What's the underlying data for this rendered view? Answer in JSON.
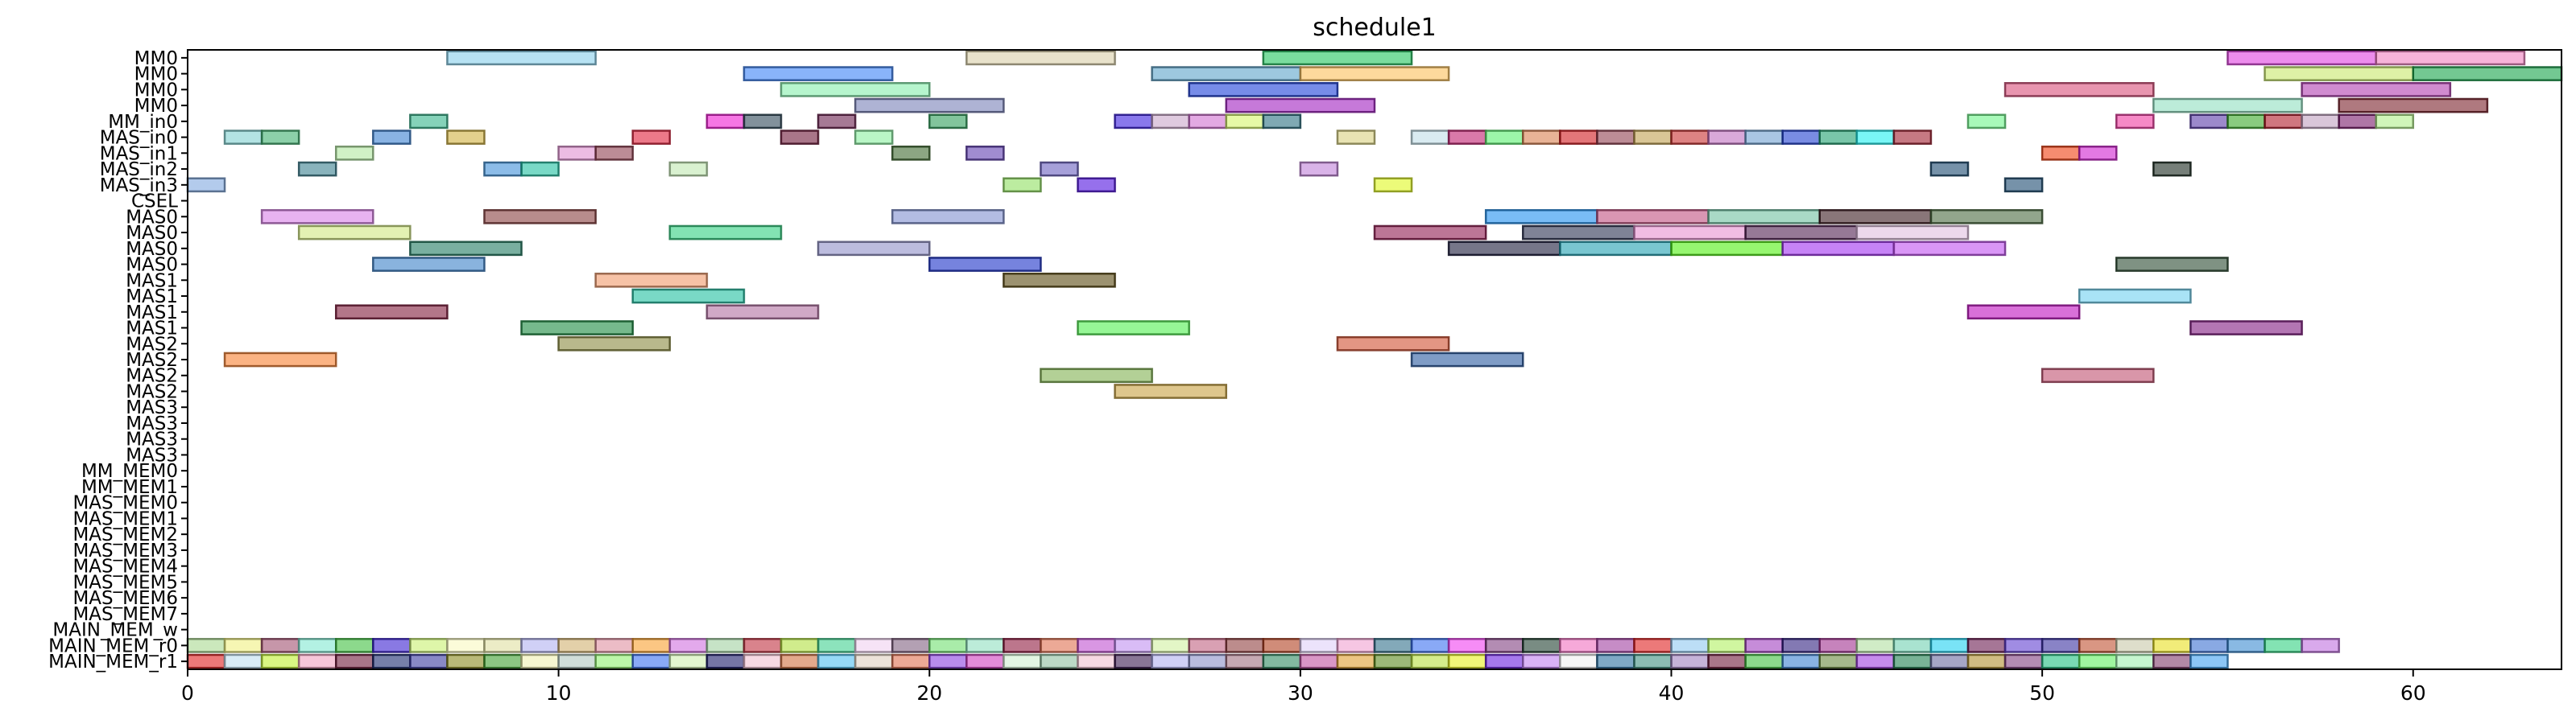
{
  "chart_data": {
    "type": "gantt",
    "title": "schedule1",
    "xlabel": "",
    "ylabel": "",
    "xlim": [
      0,
      64
    ],
    "x_ticks": [
      0,
      10,
      20,
      30,
      40,
      50,
      60
    ],
    "grid": false,
    "rows": [
      "MM0",
      "MM0",
      "MM0",
      "MM0",
      "MM_in0",
      "MAS_in0",
      "MAS_in1",
      "MAS_in2",
      "MAS_in3",
      "CSEL",
      "MAS0",
      "MAS0",
      "MAS0",
      "MAS0",
      "MAS1",
      "MAS1",
      "MAS1",
      "MAS1",
      "MAS2",
      "MAS2",
      "MAS2",
      "MAS2",
      "MAS3",
      "MAS3",
      "MAS3",
      "MAS3",
      "MM_MEM0",
      "MM_MEM1",
      "MAS_MEM0",
      "MAS_MEM1",
      "MAS_MEM2",
      "MAS_MEM3",
      "MAS_MEM4",
      "MAS_MEM5",
      "MAS_MEM6",
      "MAS_MEM7",
      "MAIN_MEM_w",
      "MAIN_MEM_r0",
      "MAIN_MEM_r1"
    ],
    "tasks": [
      {
        "row": 0,
        "start": 7,
        "end": 11,
        "color": "#87ceeb"
      },
      {
        "row": 0,
        "start": 21,
        "end": 25,
        "color": "#d8cfa8"
      },
      {
        "row": 0,
        "start": 29,
        "end": 33,
        "color": "#22c55e"
      },
      {
        "row": 0,
        "start": 55,
        "end": 59,
        "color": "#e040e0"
      },
      {
        "row": 0,
        "start": 59,
        "end": 63,
        "color": "#f080c0"
      },
      {
        "row": 1,
        "start": 15,
        "end": 19,
        "color": "#3b82f6"
      },
      {
        "row": 1,
        "start": 26,
        "end": 30,
        "color": "#5ba3c9"
      },
      {
        "row": 1,
        "start": 30,
        "end": 34,
        "color": "#fbbf5a"
      },
      {
        "row": 1,
        "start": 56,
        "end": 60,
        "color": "#c8e86a"
      },
      {
        "row": 1,
        "start": 60,
        "end": 64,
        "color": "#16a34a"
      },
      {
        "row": 2,
        "start": 16,
        "end": 20,
        "color": "#86efac"
      },
      {
        "row": 2,
        "start": 27,
        "end": 31,
        "color": "#1d3fd8"
      },
      {
        "row": 2,
        "start": 49,
        "end": 53,
        "color": "#d94f7a"
      },
      {
        "row": 2,
        "start": 57,
        "end": 61,
        "color": "#b03db0"
      },
      {
        "row": 3,
        "start": 18,
        "end": 22,
        "color": "#7880b8"
      },
      {
        "row": 3,
        "start": 28,
        "end": 32,
        "color": "#a020c0"
      },
      {
        "row": 3,
        "start": 53,
        "end": 57,
        "color": "#8fe0c0"
      },
      {
        "row": 3,
        "start": 58,
        "end": 62,
        "color": "#7a1f2a"
      },
      {
        "row": 4,
        "start": 6,
        "end": 7,
        "color": "#34b48a"
      },
      {
        "row": 4,
        "start": 14,
        "end": 15,
        "color": "#f01ad2"
      },
      {
        "row": 4,
        "start": 15,
        "end": 16,
        "color": "#2f4858"
      },
      {
        "row": 4,
        "start": 17,
        "end": 18,
        "color": "#6b1f4f"
      },
      {
        "row": 4,
        "start": 20,
        "end": 21,
        "color": "#2e9e5a"
      },
      {
        "row": 4,
        "start": 25,
        "end": 26,
        "color": "#3a1ee0"
      },
      {
        "row": 4,
        "start": 26,
        "end": 27,
        "color": "#c9a7c9"
      },
      {
        "row": 4,
        "start": 27,
        "end": 28,
        "color": "#d070d0"
      },
      {
        "row": 4,
        "start": 28,
        "end": 29,
        "color": "#d6f56a"
      },
      {
        "row": 4,
        "start": 29,
        "end": 30,
        "color": "#2a6f80"
      },
      {
        "row": 4,
        "start": 48,
        "end": 49,
        "color": "#6ef58a"
      },
      {
        "row": 4,
        "start": 52,
        "end": 53,
        "color": "#f03aa0"
      },
      {
        "row": 4,
        "start": 54,
        "end": 55,
        "color": "#5a3aa8"
      },
      {
        "row": 4,
        "start": 55,
        "end": 56,
        "color": "#3aa82a"
      },
      {
        "row": 4,
        "start": 56,
        "end": 57,
        "color": "#b01a2a"
      },
      {
        "row": 4,
        "start": 57,
        "end": 58,
        "color": "#c0a0c0"
      },
      {
        "row": 4,
        "start": 58,
        "end": 59,
        "color": "#7a1a6a"
      },
      {
        "row": 4,
        "start": 59,
        "end": 60,
        "color": "#b0ee8a"
      },
      {
        "row": 5,
        "start": 1,
        "end": 2,
        "color": "#80d0d0"
      },
      {
        "row": 5,
        "start": 2,
        "end": 3,
        "color": "#40b070"
      },
      {
        "row": 5,
        "start": 5,
        "end": 6,
        "color": "#3a80d0"
      },
      {
        "row": 5,
        "start": 7,
        "end": 8,
        "color": "#d0b040"
      },
      {
        "row": 5,
        "start": 12,
        "end": 13,
        "color": "#e0203a"
      },
      {
        "row": 5,
        "start": 16,
        "end": 17,
        "color": "#701a3a"
      },
      {
        "row": 5,
        "start": 18,
        "end": 19,
        "color": "#8af0a0"
      },
      {
        "row": 5,
        "start": 31,
        "end": 32,
        "color": "#d8d080"
      },
      {
        "row": 5,
        "start": 33,
        "end": 34,
        "color": "#c0dde8"
      },
      {
        "row": 5,
        "start": 34,
        "end": 35,
        "color": "#c02070"
      },
      {
        "row": 5,
        "start": 35,
        "end": 36,
        "color": "#5af070"
      },
      {
        "row": 5,
        "start": 36,
        "end": 37,
        "color": "#d88050"
      },
      {
        "row": 5,
        "start": 37,
        "end": 38,
        "color": "#d01a20"
      },
      {
        "row": 5,
        "start": 38,
        "end": 39,
        "color": "#904050"
      },
      {
        "row": 5,
        "start": 39,
        "end": 40,
        "color": "#c0a050"
      },
      {
        "row": 5,
        "start": 40,
        "end": 41,
        "color": "#c83030"
      },
      {
        "row": 5,
        "start": 41,
        "end": 42,
        "color": "#c070c0"
      },
      {
        "row": 5,
        "start": 42,
        "end": 43,
        "color": "#70a0d0"
      },
      {
        "row": 5,
        "start": 43,
        "end": 44,
        "color": "#2040d0"
      },
      {
        "row": 5,
        "start": 44,
        "end": 45,
        "color": "#20a070"
      },
      {
        "row": 5,
        "start": 45,
        "end": 46,
        "color": "#20f0f0"
      },
      {
        "row": 5,
        "start": 46,
        "end": 47,
        "color": "#a02030"
      },
      {
        "row": 6,
        "start": 4,
        "end": 5,
        "color": "#b0e8a0"
      },
      {
        "row": 6,
        "start": 10,
        "end": 11,
        "color": "#e090d0"
      },
      {
        "row": 6,
        "start": 11,
        "end": 12,
        "color": "#904050"
      },
      {
        "row": 6,
        "start": 19,
        "end": 20,
        "color": "#406a30"
      },
      {
        "row": 6,
        "start": 21,
        "end": 22,
        "color": "#6040b0"
      },
      {
        "row": 6,
        "start": 50,
        "end": 51,
        "color": "#f04010"
      },
      {
        "row": 6,
        "start": 51,
        "end": 52,
        "color": "#d020d0"
      },
      {
        "row": 7,
        "start": 3,
        "end": 4,
        "color": "#3a8090"
      },
      {
        "row": 7,
        "start": 8,
        "end": 9,
        "color": "#4090d8"
      },
      {
        "row": 7,
        "start": 9,
        "end": 10,
        "color": "#20c0a0"
      },
      {
        "row": 7,
        "start": 13,
        "end": 14,
        "color": "#c0e8b0"
      },
      {
        "row": 7,
        "start": 23,
        "end": 24,
        "color": "#6a60c0"
      },
      {
        "row": 7,
        "start": 30,
        "end": 31,
        "color": "#c080d8"
      },
      {
        "row": 7,
        "start": 47,
        "end": 48,
        "color": "#1a4a70"
      },
      {
        "row": 7,
        "start": 53,
        "end": 54,
        "color": "#1a2a20"
      },
      {
        "row": 8,
        "start": 0,
        "end": 1,
        "color": "#80a8e0"
      },
      {
        "row": 8,
        "start": 22,
        "end": 23,
        "color": "#90e060"
      },
      {
        "row": 8,
        "start": 24,
        "end": 25,
        "color": "#5010e0"
      },
      {
        "row": 8,
        "start": 32,
        "end": 33,
        "color": "#e0f820"
      },
      {
        "row": 8,
        "start": 49,
        "end": 50,
        "color": "#1a4a70"
      },
      {
        "row": 10,
        "start": 2,
        "end": 5,
        "color": "#d880e8"
      },
      {
        "row": 10,
        "start": 8,
        "end": 11,
        "color": "#884040"
      },
      {
        "row": 10,
        "start": 19,
        "end": 22,
        "color": "#8090d0"
      },
      {
        "row": 10,
        "start": 35,
        "end": 38,
        "color": "#2090f0"
      },
      {
        "row": 10,
        "start": 38,
        "end": 41,
        "color": "#c05080"
      },
      {
        "row": 10,
        "start": 41,
        "end": 44,
        "color": "#70c0a0"
      },
      {
        "row": 10,
        "start": 44,
        "end": 47,
        "color": "#3a1a20"
      },
      {
        "row": 10,
        "start": 47,
        "end": 50,
        "color": "#4a6a40"
      },
      {
        "row": 11,
        "start": 3,
        "end": 6,
        "color": "#d0e880"
      },
      {
        "row": 11,
        "start": 13,
        "end": 16,
        "color": "#30d080"
      },
      {
        "row": 11,
        "start": 32,
        "end": 35,
        "color": "#901a50"
      },
      {
        "row": 11,
        "start": 36,
        "end": 39,
        "color": "#2a3050"
      },
      {
        "row": 11,
        "start": 39,
        "end": 42,
        "color": "#e890d0"
      },
      {
        "row": 11,
        "start": 42,
        "end": 45,
        "color": "#502050"
      },
      {
        "row": 11,
        "start": 45,
        "end": 48,
        "color": "#e0c0e0"
      },
      {
        "row": 12,
        "start": 6,
        "end": 9,
        "color": "#207a60"
      },
      {
        "row": 12,
        "start": 17,
        "end": 20,
        "color": "#9090c8"
      },
      {
        "row": 12,
        "start": 34,
        "end": 37,
        "color": "#1a1a3a"
      },
      {
        "row": 12,
        "start": 37,
        "end": 40,
        "color": "#20a0b0"
      },
      {
        "row": 12,
        "start": 40,
        "end": 43,
        "color": "#50f010"
      },
      {
        "row": 12,
        "start": 43,
        "end": 46,
        "color": "#a030f0"
      },
      {
        "row": 12,
        "start": 46,
        "end": 49,
        "color": "#c050f0"
      },
      {
        "row": 13,
        "start": 5,
        "end": 8,
        "color": "#3a80c8"
      },
      {
        "row": 13,
        "start": 20,
        "end": 23,
        "color": "#1a30c8"
      },
      {
        "row": 13,
        "start": 52,
        "end": 55,
        "color": "#2a4a30"
      },
      {
        "row": 14,
        "start": 11,
        "end": 14,
        "color": "#f09a6a"
      },
      {
        "row": 14,
        "start": 22,
        "end": 25,
        "color": "#5a4a10"
      },
      {
        "row": 15,
        "start": 12,
        "end": 15,
        "color": "#20c0a0"
      },
      {
        "row": 15,
        "start": 51,
        "end": 54,
        "color": "#70d0f0"
      },
      {
        "row": 16,
        "start": 4,
        "end": 7,
        "color": "#801a3a"
      },
      {
        "row": 16,
        "start": 14,
        "end": 17,
        "color": "#b070a0"
      },
      {
        "row": 16,
        "start": 48,
        "end": 51,
        "color": "#c010c0"
      },
      {
        "row": 17,
        "start": 9,
        "end": 12,
        "color": "#1a8a40"
      },
      {
        "row": 17,
        "start": 24,
        "end": 27,
        "color": "#50f050"
      },
      {
        "row": 17,
        "start": 54,
        "end": 57,
        "color": "#801a80"
      },
      {
        "row": 18,
        "start": 10,
        "end": 13,
        "color": "#8a8a40"
      },
      {
        "row": 18,
        "start": 31,
        "end": 34,
        "color": "#d05030"
      },
      {
        "row": 19,
        "start": 1,
        "end": 4,
        "color": "#f88030"
      },
      {
        "row": 19,
        "start": 33,
        "end": 36,
        "color": "#2a5aa0"
      },
      {
        "row": 20,
        "start": 23,
        "end": 26,
        "color": "#80b050"
      },
      {
        "row": 20,
        "start": 50,
        "end": 53,
        "color": "#c05070"
      },
      {
        "row": 21,
        "start": 25,
        "end": 28,
        "color": "#c8a040"
      }
    ],
    "memory_rows": {
      "r0": {
        "row": 37,
        "colors": [
          "#a8d890",
          "#f0f080",
          "#a05070",
          "#80e8d0",
          "#40c040",
          "#3a20d0",
          "#c8f070",
          "#f8f8c0",
          "#e0e0a0",
          "#b0b0f0",
          "#d0b070",
          "#e090a0",
          "#f8a030",
          "#d070e0",
          "#a0d0a0",
          "#c03040",
          "#b0e040",
          "#40d090",
          "#f0d0f0",
          "#806080",
          "#70e070",
          "#90e0c0",
          "#901a40",
          "#e07050",
          "#c050d0",
          "#c090f0",
          "#d0f0a0",
          "#c06080",
          "#904040",
          "#b04020",
          "#e0d0f8",
          "#f0a0d0",
          "#30708a",
          "#3a70f0",
          "#f040f0",
          "#804080",
          "#204030",
          "#f070c0",
          "#a040a0",
          "#e02020",
          "#90c8f0",
          "#b0f060",
          "#a040c0",
          "#302080",
          "#a03090",
          "#b0e0a0",
          "#70d0b0",
          "#20d0f0",
          "#6a1a50",
          "#6040d0",
          "#3a30a0",
          "#c05030",
          "#c8c8a8",
          "#e8e020",
          "#3a70d0",
          "#3a8ad0",
          "#30d080",
          "#c070e0"
        ]
      },
      "r1": {
        "row": 38,
        "colors": [
          "#e02020",
          "#c0e0f0",
          "#c0f030",
          "#f0a0c0",
          "#701a3a",
          "#1a2a70",
          "#3a3aa0",
          "#8a8a20",
          "#40a030",
          "#f0f0b0",
          "#b0c8c0",
          "#90f070",
          "#3a70f0",
          "#d0f0b0",
          "#1a1a6a",
          "#f0c0d0",
          "#d07040",
          "#50c0f0",
          "#e0d0c0",
          "#e07050",
          "#8a40e0",
          "#d040c0",
          "#d0f0d0",
          "#90c0a0",
          "#f0c0d0",
          "#3a1a50",
          "#b0b0f0",
          "#8a90c8",
          "#a07080",
          "#308a60",
          "#c050a0",
          "#e0a030",
          "#5a8a20",
          "#b8e040",
          "#e8f020",
          "#6a20e0",
          "#c080f0",
          "#f0f0f0",
          "#2a70a0",
          "#409080",
          "#a080c0",
          "#701a3a",
          "#40c040",
          "#3a80d0",
          "#6a8a40",
          "#a040e0",
          "#208050",
          "#6a6aa0",
          "#b09030",
          "#804080",
          "#20c080",
          "#60f060",
          "#a0f0b0",
          "#803a6a",
          "#40a0f0"
        ]
      }
    }
  }
}
